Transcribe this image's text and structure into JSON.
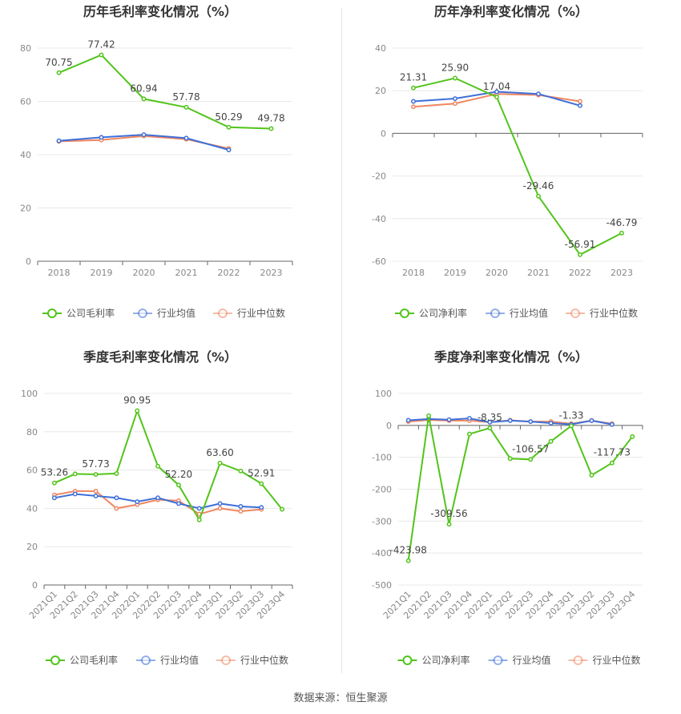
{
  "source_text": "数据来源：恒生聚源",
  "colors": {
    "company": "#52c41a",
    "avg": "#3e6fd8",
    "median": "#f08660"
  },
  "chart_data": [
    {
      "type": "line",
      "title": "历年毛利率变化情况（%）",
      "categories": [
        "2018",
        "2019",
        "2020",
        "2021",
        "2022",
        "2023"
      ],
      "ylim": [
        0,
        80
      ],
      "yticks": [
        0,
        20,
        40,
        60,
        80
      ],
      "series": [
        {
          "name": "公司毛利率",
          "values": [
            70.75,
            77.42,
            60.94,
            57.78,
            50.29,
            49.78
          ],
          "labels": [
            "70.75",
            "77.42",
            "60.94",
            "57.78",
            "50.29",
            "49.78"
          ]
        },
        {
          "name": "行业均值",
          "values": [
            45.2,
            46.5,
            47.5,
            46.2,
            41.8,
            null
          ]
        },
        {
          "name": "行业中位数",
          "values": [
            45.0,
            45.5,
            47.0,
            45.8,
            42.3,
            null
          ]
        }
      ],
      "legend": "bottom"
    },
    {
      "type": "line",
      "title": "历年净利率变化情况（%）",
      "categories": [
        "2018",
        "2019",
        "2020",
        "2021",
        "2022",
        "2023"
      ],
      "ylim": [
        -60,
        40
      ],
      "yticks": [
        -60,
        -40,
        -20,
        0,
        20,
        40
      ],
      "series": [
        {
          "name": "公司净利率",
          "values": [
            21.31,
            25.9,
            17.04,
            -29.46,
            -56.91,
            -46.79
          ],
          "labels": [
            "21.31",
            "25.90",
            "17.04",
            "-29.46",
            "-56.91",
            "-46.79"
          ]
        },
        {
          "name": "行业均值",
          "values": [
            15.0,
            16.3,
            19.5,
            18.5,
            13.0,
            null
          ]
        },
        {
          "name": "行业中位数",
          "values": [
            12.5,
            14.0,
            18.5,
            18.0,
            15.0,
            null
          ]
        }
      ],
      "legend": "bottom"
    },
    {
      "type": "line",
      "title": "季度毛利率变化情况（%）",
      "categories": [
        "2021Q1",
        "2021Q2",
        "2021Q3",
        "2021Q4",
        "2022Q1",
        "2022Q2",
        "2022Q3",
        "2022Q4",
        "2023Q1",
        "2023Q2",
        "2023Q3",
        "2023Q4"
      ],
      "ylim": [
        0,
        100
      ],
      "yticks": [
        0,
        20,
        40,
        60,
        80,
        100
      ],
      "series": [
        {
          "name": "公司毛利率",
          "values": [
            53.26,
            58.0,
            57.73,
            58.2,
            90.95,
            62.0,
            52.2,
            34.0,
            63.6,
            59.5,
            52.91,
            39.5
          ],
          "labels": [
            "53.26",
            null,
            "57.73",
            null,
            "90.95",
            null,
            "52.20",
            null,
            "63.60",
            null,
            "52.91",
            null
          ]
        },
        {
          "name": "行业均值",
          "values": [
            45.5,
            47.5,
            46.5,
            45.5,
            43.5,
            45.5,
            42.5,
            40.0,
            42.5,
            41.0,
            40.5,
            null
          ]
        },
        {
          "name": "行业中位数",
          "values": [
            47.0,
            49.0,
            49.0,
            40.0,
            42.0,
            44.5,
            44.0,
            37.0,
            40.0,
            38.5,
            39.5,
            null
          ]
        }
      ],
      "legend": "bottom"
    },
    {
      "type": "line",
      "title": "季度净利率变化情况（%）",
      "categories": [
        "2021Q1",
        "2021Q2",
        "2021Q3",
        "2021Q4",
        "2022Q1",
        "2022Q2",
        "2022Q3",
        "2022Q4",
        "2023Q1",
        "2023Q2",
        "2023Q3",
        "2023Q4"
      ],
      "ylim": [
        -500,
        100
      ],
      "yticks": [
        -500,
        -400,
        -300,
        -200,
        -100,
        0,
        100
      ],
      "series": [
        {
          "name": "公司净利率",
          "values": [
            -423.98,
            30,
            -309.56,
            -27,
            -8.35,
            -104,
            -106.57,
            -50,
            -1.33,
            -156,
            -117.73,
            -35
          ],
          "labels": [
            "-423.98",
            null,
            "-309.56",
            null,
            "-8.35",
            null,
            "-106.57",
            null,
            "-1.33",
            null,
            "-117.73",
            null
          ]
        },
        {
          "name": "行业均值",
          "values": [
            16,
            20,
            18,
            22,
            10,
            15,
            12,
            7,
            3,
            15,
            3,
            null
          ]
        },
        {
          "name": "行业中位数",
          "values": [
            12,
            17,
            15,
            15,
            10,
            16,
            12,
            12,
            5,
            15,
            5,
            null
          ]
        }
      ],
      "legend": "bottom"
    }
  ]
}
